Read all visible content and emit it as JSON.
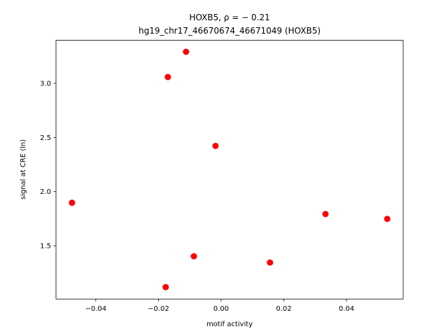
{
  "chart_data": {
    "type": "scatter",
    "title": "HOXB5, ρ = − 0.21",
    "subtitle": "hg19_chr17_46670674_46671049 (HOXB5)",
    "x_label": "motif activity",
    "y_label": "signal at CRE (ln)",
    "color": "#ff0000",
    "x": [
      -0.0476,
      -0.017,
      -0.0112,
      -0.0018,
      -0.0087,
      -0.0177,
      0.0156,
      0.0333,
      0.053
    ],
    "values": [
      1.897,
      3.058,
      3.291,
      2.422,
      1.403,
      1.118,
      1.345,
      1.793,
      1.748
    ],
    "xlim": [
      -0.0527,
      0.0581
    ],
    "ylim": [
      1.008,
      3.397
    ],
    "xticks": [
      {
        "value": -0.04,
        "label": "−0.04"
      },
      {
        "value": -0.02,
        "label": "−0.02"
      },
      {
        "value": 0,
        "label": "0.00"
      },
      0.02,
      0.04
    ],
    "yticks": [
      1.5,
      {
        "value": 2,
        "label": "2.0"
      },
      2.5,
      {
        "value": 3,
        "label": "3.0"
      }
    ],
    "grid": false
  }
}
